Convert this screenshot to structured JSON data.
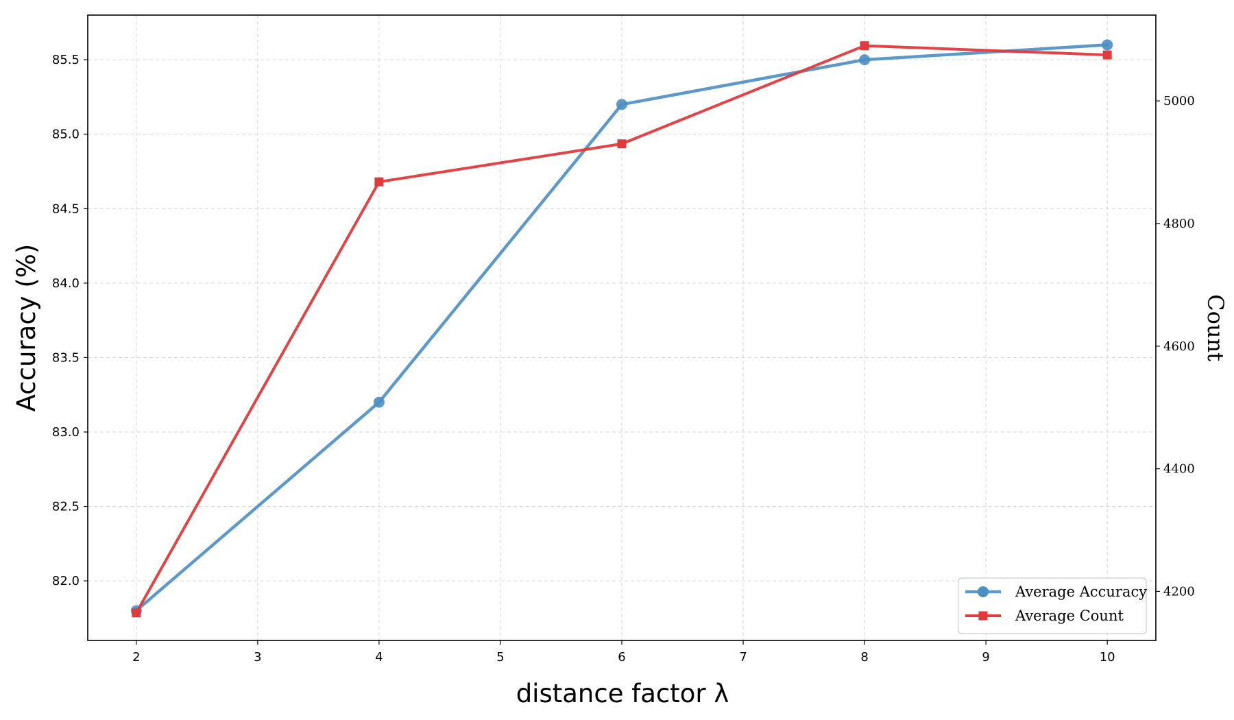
{
  "chart_data": {
    "type": "line",
    "xlabel": "distance factor λ",
    "ylabel": "Accuracy (%)",
    "y2label": "Count",
    "x": [
      2,
      4,
      6,
      8,
      10
    ],
    "xlim": [
      1.6,
      10.4
    ],
    "xticks": [
      2,
      3,
      4,
      5,
      6,
      7,
      8,
      9,
      10
    ],
    "ylim": [
      81.6,
      85.8
    ],
    "yticks": [
      82.0,
      82.5,
      83.0,
      83.5,
      84.0,
      84.5,
      85.0,
      85.5
    ],
    "ytick_labels": [
      "82.0",
      "82.5",
      "83.0",
      "83.5",
      "84.0",
      "84.5",
      "85.0",
      "85.5"
    ],
    "y2lim": [
      4120,
      5140
    ],
    "y2ticks": [
      4200,
      4400,
      4600,
      4800,
      5000
    ],
    "y2tick_labels": [
      "4200",
      "4400",
      "4600",
      "4800",
      "5000"
    ],
    "grid": true,
    "legend_position": "lower-right",
    "series": [
      {
        "name": "Average Accuracy",
        "axis": "left",
        "marker": "circle",
        "color": "#4a8ec4",
        "values": [
          81.8,
          83.2,
          85.2,
          85.5,
          85.6
        ]
      },
      {
        "name": "Average Count",
        "axis": "right",
        "marker": "square",
        "color": "#e03a3c",
        "values": [
          4165,
          4868,
          4930,
          5090,
          5075
        ]
      }
    ]
  }
}
